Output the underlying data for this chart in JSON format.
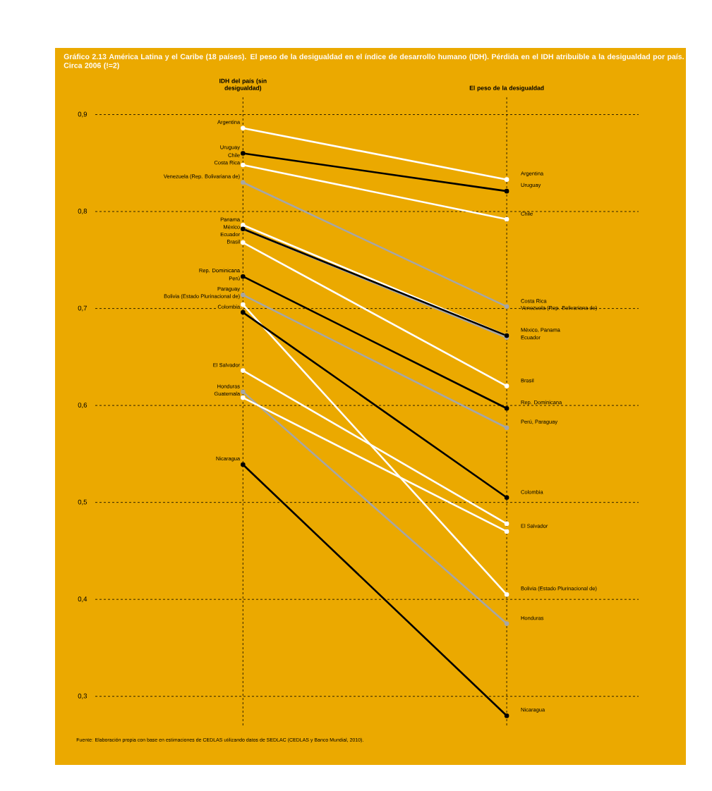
{
  "chart_data": {
    "type": "line",
    "title": "Gráfico 2.13 América Latina y el Caribe (18 países). El peso de la desigualdad en el índice de desarrollo humano (IDH). Pérdida en el IDH atribuible a la desigualdad por país. Circa 2006 (!=2)",
    "categories": [
      "IDH del país (sin desigualdad)",
      "El peso de la desigualdad"
    ],
    "ylim": [
      0.27,
      0.92
    ],
    "yticks": [
      {
        "value": 0.3,
        "label": "0,3"
      },
      {
        "value": 0.4,
        "label": "0,4"
      },
      {
        "value": 0.5,
        "label": "0,5"
      },
      {
        "value": 0.6,
        "label": "0,6"
      },
      {
        "value": 0.7,
        "label": "0,7"
      },
      {
        "value": 0.8,
        "label": "0,8"
      },
      {
        "value": 0.9,
        "label": "0,9"
      }
    ],
    "grid": true,
    "marker": "circle",
    "line_style": "solid",
    "series": [
      {
        "color": "#ffffff",
        "values": [
          0.886,
          0.833
        ]
      },
      {
        "color": "#000000",
        "values": [
          0.86,
          0.821
        ]
      },
      {
        "color": "#ffffff",
        "values": [
          0.848,
          0.792
        ]
      },
      {
        "color": "#a6a6a6",
        "values": [
          0.83,
          0.702
        ]
      },
      {
        "color": "#ffffff",
        "values": [
          0.786,
          0.672
        ]
      },
      {
        "color": "#a6a6a6",
        "values": [
          0.782,
          0.67
        ]
      },
      {
        "color": "#000000",
        "values": [
          0.782,
          0.672
        ]
      },
      {
        "color": "#ffffff",
        "values": [
          0.768,
          0.62
        ]
      },
      {
        "color": "#000000",
        "values": [
          0.733,
          0.597
        ]
      },
      {
        "color": "#a6a6a6",
        "values": [
          0.714,
          0.577
        ]
      },
      {
        "color": "#ffffff",
        "values": [
          0.704,
          0.405
        ]
      },
      {
        "color": "#000000",
        "values": [
          0.696,
          0.505
        ]
      },
      {
        "color": "#ffffff",
        "values": [
          0.636,
          0.478
        ]
      },
      {
        "color": "#a6a6a6",
        "values": [
          0.614,
          0.375
        ]
      },
      {
        "color": "#ffffff",
        "values": [
          0.608,
          0.47
        ]
      },
      {
        "color": "#000000",
        "values": [
          0.539,
          0.28
        ]
      }
    ],
    "annotations": [
      {
        "text": "Argentina",
        "x": "IDH del país (sin desigualdad)",
        "y": 0.886
      },
      {
        "text": "Uruguay",
        "x": "IDH del país (sin desigualdad)",
        "y": 0.86
      },
      {
        "text": "Chile",
        "x": "IDH del país (sin desigualdad)",
        "y": 0.86
      },
      {
        "text": "Costa Rica",
        "x": "IDH del país (sin desigualdad)",
        "y": 0.848
      },
      {
        "text": "Venezuela (Rep. Bolivariana de)",
        "x": "IDH del país (sin desigualdad)",
        "y": 0.83
      },
      {
        "text": "Panama",
        "x": "IDH del país (sin desigualdad)",
        "y": 0.786
      },
      {
        "text": "México",
        "x": "IDH del país (sin desigualdad)",
        "y": 0.786
      },
      {
        "text": "Ecuador",
        "x": "IDH del país (sin desigualdad)",
        "y": 0.782
      },
      {
        "text": "Brasil",
        "x": "IDH del país (sin desigualdad)",
        "y": 0.768
      },
      {
        "text": "Rep. Dominicana",
        "x": "IDH del país (sin desigualdad)",
        "y": 0.733
      },
      {
        "text": "Perú",
        "x": "IDH del país (sin desigualdad)",
        "y": 0.733
      },
      {
        "text": "Paraguay",
        "x": "IDH del país (sin desigualdad)",
        "y": 0.714
      },
      {
        "text": "Bolivia (Estado Plurinacional de)",
        "x": "IDH del país (sin desigualdad)",
        "y": 0.714
      },
      {
        "text": "Colombia",
        "x": "IDH del país (sin desigualdad)",
        "y": 0.696
      },
      {
        "text": "El Salvador",
        "x": "IDH del país (sin desigualdad)",
        "y": 0.636
      },
      {
        "text": "Honduras",
        "x": "IDH del país (sin desigualdad)",
        "y": 0.614
      },
      {
        "text": "Guatemala",
        "x": "IDH del país (sin desigualdad)",
        "y": 0.608
      },
      {
        "text": "Nicaragua",
        "x": "IDH del país (sin desigualdad)",
        "y": 0.539
      },
      {
        "text": "Argentina",
        "x": "El peso de la desigualdad",
        "y": 0.833
      },
      {
        "text": "Uruguay",
        "x": "El peso de la desigualdad",
        "y": 0.821
      },
      {
        "text": "Chile",
        "x": "El peso de la desigualdad",
        "y": 0.792
      },
      {
        "text": "Costa Rica",
        "x": "El peso de la desigualdad",
        "y": 0.702
      },
      {
        "text": "Venezuela (Rep. Bolivariana de)",
        "x": "El peso de la desigualdad",
        "y": 0.702
      },
      {
        "text": "México, Panama",
        "x": "El peso de la desigualdad",
        "y": 0.672
      },
      {
        "text": "Ecuador",
        "x": "El peso de la desigualdad",
        "y": 0.67
      },
      {
        "text": "Brasil",
        "x": "El peso de la desigualdad",
        "y": 0.62
      },
      {
        "text": "Rep. Dominicana",
        "x": "El peso de la desigualdad",
        "y": 0.597
      },
      {
        "text": "Perú, Paraguay",
        "x": "El peso de la desigualdad",
        "y": 0.577
      },
      {
        "text": "Colombia",
        "x": "El peso de la desigualdad",
        "y": 0.505
      },
      {
        "text": "El Salvador",
        "x": "El peso de la desigualdad",
        "y": 0.47
      },
      {
        "text": "Bolivia (Estado Plurinacional de)",
        "x": "El peso de la desigualdad",
        "y": 0.405
      },
      {
        "text": "Honduras",
        "x": "El peso de la desigualdad",
        "y": 0.375
      },
      {
        "text": "Nicaragua",
        "x": "El peso de la desigualdad",
        "y": 0.28
      },
      "Fuente: Elaboración propia con base en estimaciones de CEDLAS utilizando datos de SEDLAC (CEDLAS y Banco Mundial, 2010)."
    ]
  }
}
